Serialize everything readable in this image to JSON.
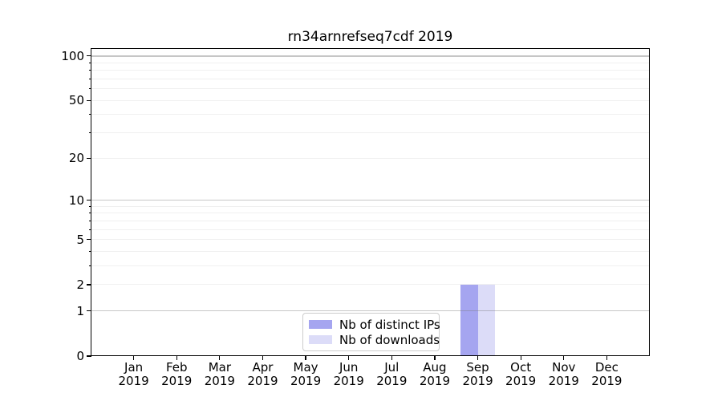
{
  "chart_data": {
    "type": "bar",
    "title": "rn34arnrefseq7cdf 2019",
    "categories": [
      "Jan",
      "Feb",
      "Mar",
      "Apr",
      "May",
      "Jun",
      "Jul",
      "Aug",
      "Sep",
      "Oct",
      "Nov",
      "Dec"
    ],
    "x_tick_year": "2019",
    "series": [
      {
        "name": "Nb of distinct IPs",
        "color": "#a5a5f0",
        "values": [
          0,
          0,
          0,
          0,
          0,
          0,
          0,
          0,
          2,
          0,
          0,
          0
        ]
      },
      {
        "name": "Nb of downloads",
        "color": "#dcdcf8",
        "values": [
          0,
          0,
          0,
          0,
          0,
          0,
          0,
          0,
          2,
          0,
          0,
          0
        ]
      }
    ],
    "yscale": "log1p",
    "yticks": [
      0,
      1,
      2,
      5,
      10,
      20,
      50,
      100
    ],
    "ylim": [
      0,
      113
    ],
    "grid": true,
    "legend": {
      "position": "lower center",
      "entries": [
        "Nb of distinct IPs",
        "Nb of downloads"
      ]
    },
    "colors": {
      "distinct_ips_bar": "#a5a5f0",
      "downloads_bar": "#dcdcf8",
      "decade_gridline": "#c6c6c6",
      "minor_gridline": "#f0f0f0",
      "spine": "#000000"
    }
  }
}
